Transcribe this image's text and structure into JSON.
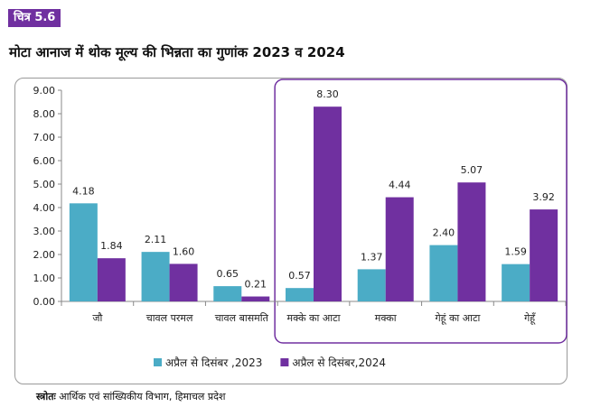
{
  "figure_label": "चित्र 5.6",
  "title": "मोटा आनाज में थोक मूल्य की भिन्नता का गुणांक 2023 व 2024",
  "source_label": "स्त्रोतः",
  "source_text": " आर्थिक एवं सांख्यिकीय विभाग, हिमाचल प्रदेश",
  "colors": {
    "series_2023": "#4BACC6",
    "series_2024": "#7030A0",
    "highlight_border": "#7030A0",
    "badge": "#7030A0"
  },
  "chart_data": {
    "type": "bar",
    "title": "",
    "xlabel": "",
    "ylabel": "",
    "ylim": [
      0,
      9
    ],
    "yticks": [
      "0.00",
      "1.00",
      "2.00",
      "3.00",
      "4.00",
      "5.00",
      "6.00",
      "7.00",
      "8.00",
      "9.00"
    ],
    "categories": [
      "जौ",
      "चावल परमल",
      "चावल बासमति",
      "मक्के का आटा",
      "मक्का",
      "गेहूं का आटा",
      "गेहूँ"
    ],
    "series": [
      {
        "name": "अप्रैल से दिसंबर ,2023",
        "values": [
          4.18,
          2.11,
          0.65,
          0.57,
          1.37,
          2.4,
          1.59
        ],
        "labels": [
          "4.18",
          "2.11",
          "0.65",
          "0.57",
          "1.37",
          "2.40",
          "1.59"
        ]
      },
      {
        "name": "अप्रैल से दिसंबर,2024",
        "values": [
          1.84,
          1.6,
          0.21,
          8.3,
          4.44,
          5.07,
          3.92
        ],
        "labels": [
          "1.84",
          "1.60",
          "0.21",
          "8.30",
          "4.44",
          "5.07",
          "3.92"
        ]
      }
    ],
    "grid": false,
    "legend_position": "bottom",
    "highlighted_categories": [
      "मक्के का आटा",
      "मक्का",
      "गेहूं का आटा",
      "गेहूँ"
    ]
  }
}
